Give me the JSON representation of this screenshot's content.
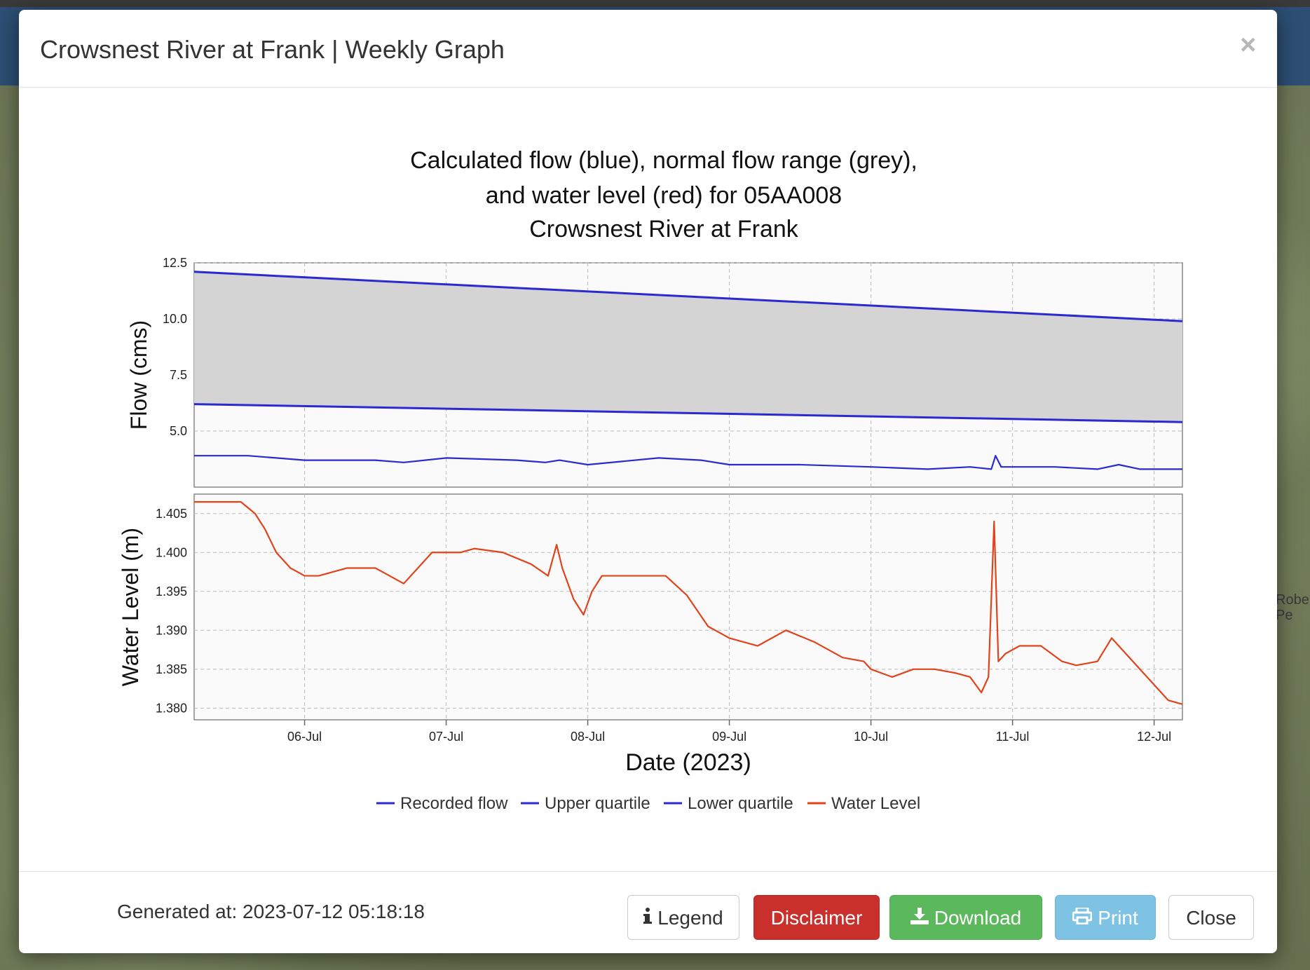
{
  "background_map": {
    "label_line1": "Robe",
    "label_line2": "Pe"
  },
  "modal": {
    "title": "Crowsnest River at Frank | Weekly Graph",
    "close_glyph": "×",
    "generated_label": "Generated at: 2023-07-12 05:18:18",
    "buttons": {
      "legend": "Legend",
      "legend_icon": "info-icon",
      "disclaimer": "Disclaimer",
      "download": "Download",
      "download_icon": "download-icon",
      "print": "Print",
      "print_icon": "print-icon",
      "close": "Close"
    },
    "colors": {
      "disclaimer": "#c9302c",
      "download": "#5cb85c",
      "print": "#7ec3e3",
      "flow_line": "#2a2ad0",
      "water_level_line": "#e2431a",
      "normal_range_fill": "#d4d4d4"
    }
  },
  "chart_data": {
    "type": "line",
    "title_lines": [
      "Calculated flow (blue), normal flow range (grey),",
      "and water level (red) for 05AA008",
      "Crowsnest River at Frank"
    ],
    "xlabel": "Date (2023)",
    "x_ticks": [
      "06-Jul",
      "07-Jul",
      "08-Jul",
      "09-Jul",
      "10-Jul",
      "11-Jul",
      "12-Jul"
    ],
    "x_range_days": [
      5.22,
      12.2
    ],
    "grid": true,
    "legend_placement": "bottom-center",
    "legend": [
      "Recorded flow",
      "Upper quartile",
      "Lower quartile",
      "Water Level"
    ],
    "panels": [
      {
        "ylabel": "Flow (cms)",
        "ylim": [
          2.5,
          12.5
        ],
        "y_ticks": [
          "12.5",
          "10.0",
          "7.5",
          "5.0"
        ],
        "y_tick_values": [
          12.5,
          10.0,
          7.5,
          5.0
        ],
        "normal_range_fill": true,
        "series": [
          {
            "name": "Upper quartile",
            "x": [
              5.22,
              12.2
            ],
            "values": [
              12.1,
              9.9
            ]
          },
          {
            "name": "Lower quartile",
            "x": [
              5.22,
              12.2
            ],
            "values": [
              6.2,
              5.4
            ]
          },
          {
            "name": "Recorded flow",
            "x": [
              5.22,
              5.6,
              5.8,
              6.0,
              6.5,
              6.7,
              7.0,
              7.5,
              7.7,
              7.8,
              8.0,
              8.5,
              8.8,
              9.0,
              9.5,
              10.0,
              10.4,
              10.7,
              10.85,
              10.88,
              10.92,
              11.3,
              11.6,
              11.75,
              11.9,
              12.2
            ],
            "values": [
              3.9,
              3.9,
              3.8,
              3.7,
              3.7,
              3.6,
              3.8,
              3.7,
              3.6,
              3.7,
              3.5,
              3.8,
              3.7,
              3.5,
              3.5,
              3.4,
              3.3,
              3.4,
              3.3,
              3.9,
              3.4,
              3.4,
              3.3,
              3.5,
              3.3,
              3.3
            ]
          }
        ]
      },
      {
        "ylabel": "Water Level (m)",
        "ylim": [
          1.3785,
          1.4075
        ],
        "y_ticks": [
          "1.405",
          "1.400",
          "1.395",
          "1.390",
          "1.385",
          "1.380"
        ],
        "y_tick_values": [
          1.405,
          1.4,
          1.395,
          1.39,
          1.385,
          1.38
        ],
        "series": [
          {
            "name": "Water Level",
            "x": [
              5.22,
              5.35,
              5.55,
              5.65,
              5.72,
              5.8,
              5.9,
              6.0,
              6.1,
              6.3,
              6.5,
              6.6,
              6.7,
              6.8,
              6.9,
              7.1,
              7.2,
              7.4,
              7.6,
              7.72,
              7.78,
              7.82,
              7.9,
              7.97,
              8.03,
              8.1,
              8.3,
              8.55,
              8.7,
              8.85,
              9.0,
              9.2,
              9.4,
              9.6,
              9.8,
              9.95,
              10.0,
              10.15,
              10.3,
              10.45,
              10.6,
              10.7,
              10.78,
              10.83,
              10.87,
              10.9,
              10.95,
              11.05,
              11.2,
              11.35,
              11.45,
              11.6,
              11.7,
              11.8,
              11.9,
              12.0,
              12.1,
              12.2
            ],
            "values": [
              1.4065,
              1.4065,
              1.4065,
              1.405,
              1.403,
              1.4,
              1.398,
              1.397,
              1.397,
              1.398,
              1.398,
              1.397,
              1.396,
              1.398,
              1.4,
              1.4,
              1.4005,
              1.4,
              1.3985,
              1.397,
              1.401,
              1.398,
              1.394,
              1.392,
              1.395,
              1.397,
              1.397,
              1.397,
              1.3945,
              1.3905,
              1.389,
              1.388,
              1.39,
              1.3885,
              1.3865,
              1.386,
              1.385,
              1.384,
              1.385,
              1.385,
              1.3845,
              1.384,
              1.382,
              1.384,
              1.404,
              1.386,
              1.387,
              1.388,
              1.388,
              1.386,
              1.3855,
              1.386,
              1.389,
              1.387,
              1.385,
              1.383,
              1.381,
              1.3805
            ]
          }
        ]
      }
    ]
  }
}
